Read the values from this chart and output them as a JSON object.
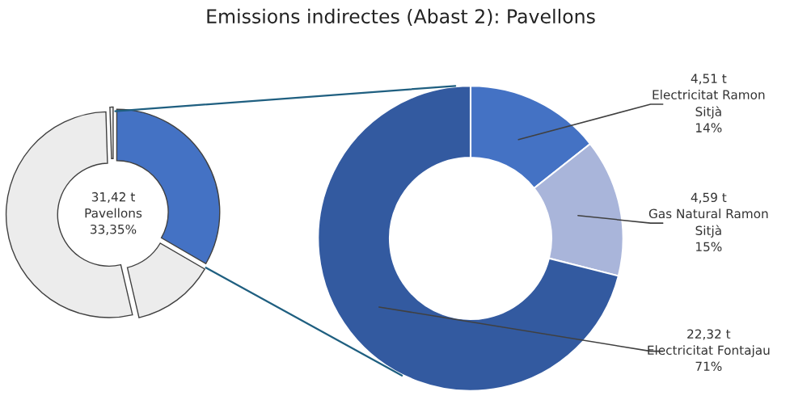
{
  "chart_data": [
    {
      "type": "donut",
      "categories": [
        "Pavellons",
        null,
        null,
        null
      ],
      "values": [
        31.42,
        12.25,
        50.07,
        0.47
      ],
      "colors": [
        "#4472c4",
        "#ececec",
        "#ececec",
        "#ececec"
      ],
      "value_labels": [
        "31,42 t",
        null,
        null,
        null
      ],
      "annotations": [
        {
          "text": "33,35%",
          "x": "Pavellons"
        }
      ]
    },
    {
      "type": "donut",
      "title": "Emissions indirectes (Abast 2): Pavellons",
      "categories": [
        "Electricitat Ramon Sitjà",
        "Gas Natural Ramon Sitjà",
        "Electricitat Fontajau"
      ],
      "values": [
        4.51,
        4.59,
        22.32
      ],
      "colors": [
        "#4472c4",
        "#a9b5da",
        "#335aa0"
      ],
      "value_labels": [
        "4,51 t",
        "4,59 t",
        "22,32 t"
      ],
      "annotations": [
        {
          "text": "14%",
          "x": "Electricitat Ramon Sitjà"
        },
        {
          "text": "15%",
          "x": "Gas Natural Ramon Sitjà"
        },
        {
          "text": "71%",
          "x": "Electricitat Fontajau"
        }
      ]
    }
  ]
}
